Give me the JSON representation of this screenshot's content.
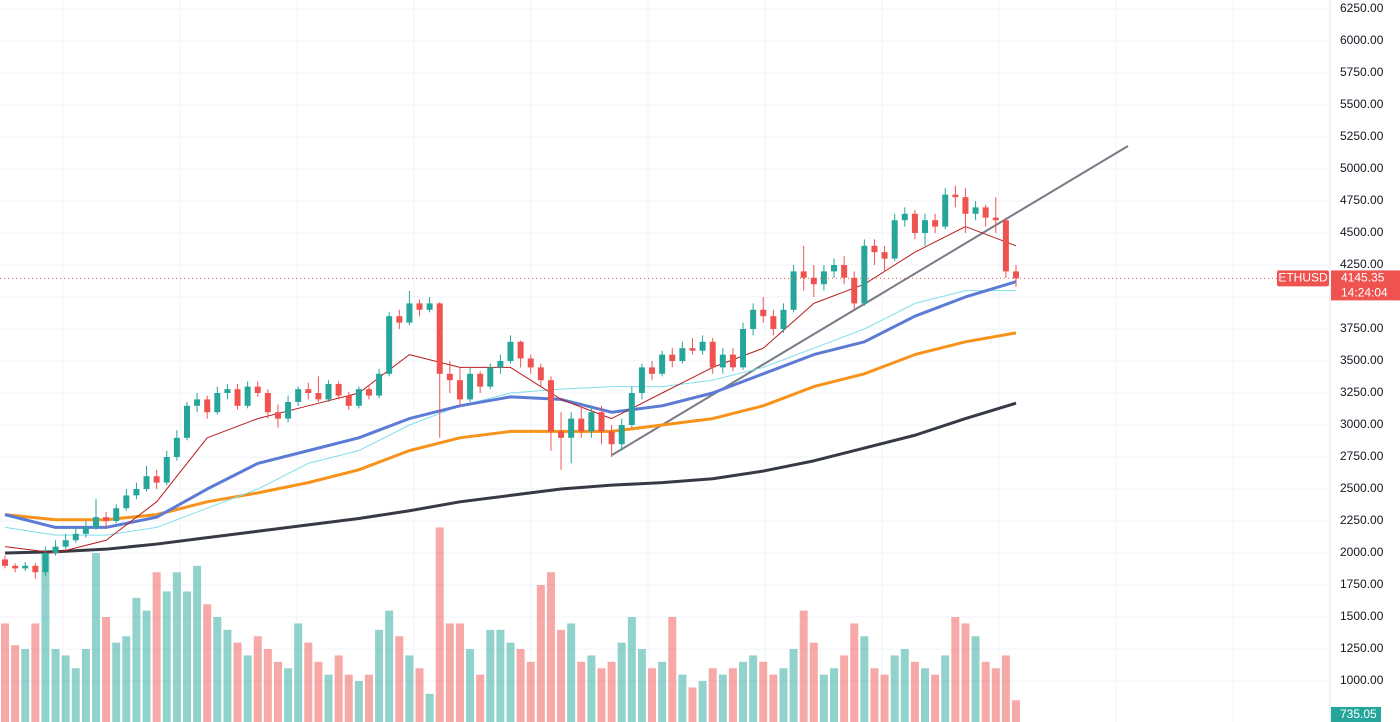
{
  "chart_data": {
    "type": "candlestick",
    "symbol": "ETHUSD",
    "last_price": 4145.35,
    "countdown": "14:24:04",
    "last_volume": 735.05,
    "ylim": [
      680,
      6320
    ],
    "yticks": [
      {
        "value": 1000,
        "label": "1000.00"
      },
      {
        "value": 1250,
        "label": "1250.00"
      },
      {
        "value": 1500,
        "label": "1500.00"
      },
      {
        "value": 1750,
        "label": "1750.00"
      },
      {
        "value": 2000,
        "label": "2000.00"
      },
      {
        "value": 2250,
        "label": "2250.00"
      },
      {
        "value": 2500,
        "label": "2500.00"
      },
      {
        "value": 2750,
        "label": "2750.00"
      },
      {
        "value": 3000,
        "label": "3000.00"
      },
      {
        "value": 3250,
        "label": "3250.00"
      },
      {
        "value": 3500,
        "label": "3500.00"
      },
      {
        "value": 3750,
        "label": "3750.00"
      },
      {
        "value": 4000,
        "label": "4000.00"
      },
      {
        "value": 4250,
        "label": "4250.00"
      },
      {
        "value": 4500,
        "label": "4500.00"
      },
      {
        "value": 4750,
        "label": "4750.00"
      },
      {
        "value": 5000,
        "label": "5000.00"
      },
      {
        "value": 5250,
        "label": "5250.00"
      },
      {
        "value": 5500,
        "label": "5500.00"
      },
      {
        "value": 5750,
        "label": "5750.00"
      },
      {
        "value": 6000,
        "label": "6000.00"
      },
      {
        "value": 6250,
        "label": "6250.00"
      }
    ],
    "grid": true,
    "up_color": "#26a69a",
    "down_color": "#ef5350",
    "candles": [
      [
        1950,
        1980,
        1880,
        1900
      ],
      [
        1900,
        1920,
        1850,
        1880
      ],
      [
        1880,
        1930,
        1860,
        1900
      ],
      [
        1900,
        1920,
        1800,
        1850
      ],
      [
        1850,
        2050,
        1820,
        2000
      ],
      [
        2000,
        2100,
        1980,
        2050
      ],
      [
        2050,
        2150,
        2030,
        2100
      ],
      [
        2100,
        2200,
        2080,
        2150
      ],
      [
        2150,
        2250,
        2120,
        2200
      ],
      [
        2200,
        2420,
        2180,
        2280
      ],
      [
        2280,
        2320,
        2200,
        2250
      ],
      [
        2250,
        2380,
        2230,
        2350
      ],
      [
        2350,
        2500,
        2330,
        2450
      ],
      [
        2450,
        2550,
        2420,
        2500
      ],
      [
        2500,
        2680,
        2480,
        2600
      ],
      [
        2600,
        2650,
        2500,
        2550
      ],
      [
        2550,
        2800,
        2530,
        2750
      ],
      [
        2750,
        2960,
        2720,
        2900
      ],
      [
        2900,
        3180,
        2880,
        3150
      ],
      [
        3150,
        3250,
        3100,
        3200
      ],
      [
        3200,
        3230,
        3050,
        3100
      ],
      [
        3100,
        3300,
        3080,
        3250
      ],
      [
        3250,
        3320,
        3200,
        3280
      ],
      [
        3280,
        3320,
        3120,
        3150
      ],
      [
        3150,
        3340,
        3130,
        3300
      ],
      [
        3300,
        3340,
        3220,
        3250
      ],
      [
        3250,
        3280,
        3050,
        3100
      ],
      [
        3100,
        3160,
        2980,
        3050
      ],
      [
        3050,
        3230,
        3020,
        3180
      ],
      [
        3180,
        3300,
        3150,
        3280
      ],
      [
        3280,
        3330,
        3200,
        3250
      ],
      [
        3250,
        3380,
        3180,
        3200
      ],
      [
        3200,
        3350,
        3180,
        3320
      ],
      [
        3320,
        3340,
        3200,
        3230
      ],
      [
        3230,
        3260,
        3120,
        3150
      ],
      [
        3150,
        3300,
        3130,
        3280
      ],
      [
        3280,
        3300,
        3200,
        3230
      ],
      [
        3230,
        3440,
        3210,
        3400
      ],
      [
        3400,
        3880,
        3380,
        3850
      ],
      [
        3850,
        3900,
        3750,
        3800
      ],
      [
        3800,
        4050,
        3780,
        3950
      ],
      [
        3950,
        3980,
        3850,
        3900
      ],
      [
        3900,
        4000,
        3880,
        3950
      ],
      [
        3950,
        3960,
        2900,
        3400
      ],
      [
        3400,
        3500,
        3250,
        3350
      ],
      [
        3350,
        3450,
        3150,
        3200
      ],
      [
        3200,
        3450,
        3180,
        3400
      ],
      [
        3400,
        3420,
        3250,
        3300
      ],
      [
        3300,
        3480,
        3280,
        3450
      ],
      [
        3450,
        3550,
        3400,
        3500
      ],
      [
        3500,
        3700,
        3480,
        3650
      ],
      [
        3650,
        3660,
        3450,
        3520
      ],
      [
        3520,
        3550,
        3400,
        3450
      ],
      [
        3450,
        3480,
        3300,
        3350
      ],
      [
        3350,
        3380,
        2800,
        2950
      ],
      [
        2950,
        3100,
        2650,
        2900
      ],
      [
        2900,
        3100,
        2700,
        3050
      ],
      [
        3050,
        3150,
        2900,
        2950
      ],
      [
        2950,
        3150,
        2900,
        3100
      ],
      [
        3100,
        3150,
        2850,
        2950
      ],
      [
        2950,
        3000,
        2750,
        2850
      ],
      [
        2850,
        3050,
        2800,
        3000
      ],
      [
        3000,
        3300,
        2980,
        3250
      ],
      [
        3250,
        3480,
        3200,
        3450
      ],
      [
        3450,
        3500,
        3350,
        3400
      ],
      [
        3400,
        3580,
        3380,
        3550
      ],
      [
        3550,
        3600,
        3450,
        3500
      ],
      [
        3500,
        3650,
        3480,
        3600
      ],
      [
        3600,
        3680,
        3550,
        3580
      ],
      [
        3580,
        3700,
        3550,
        3650
      ],
      [
        3650,
        3680,
        3400,
        3450
      ],
      [
        3450,
        3600,
        3400,
        3550
      ],
      [
        3550,
        3600,
        3420,
        3450
      ],
      [
        3450,
        3800,
        3430,
        3750
      ],
      [
        3750,
        3950,
        3700,
        3900
      ],
      [
        3900,
        4000,
        3800,
        3850
      ],
      [
        3850,
        3900,
        3700,
        3750
      ],
      [
        3750,
        3950,
        3720,
        3900
      ],
      [
        3900,
        4250,
        3880,
        4200
      ],
      [
        4200,
        4400,
        4050,
        4150
      ],
      [
        4150,
        4250,
        4000,
        4100
      ],
      [
        4100,
        4250,
        4050,
        4200
      ],
      [
        4200,
        4300,
        4150,
        4250
      ],
      [
        4250,
        4320,
        4100,
        4150
      ],
      [
        4150,
        4200,
        3900,
        3950
      ],
      [
        3950,
        4450,
        3930,
        4400
      ],
      [
        4400,
        4450,
        4250,
        4350
      ],
      [
        4350,
        4400,
        4200,
        4300
      ],
      [
        4300,
        4650,
        4280,
        4600
      ],
      [
        4600,
        4700,
        4550,
        4650
      ],
      [
        4650,
        4680,
        4450,
        4500
      ],
      [
        4500,
        4650,
        4400,
        4600
      ],
      [
        4600,
        4650,
        4500,
        4550
      ],
      [
        4550,
        4850,
        4530,
        4800
      ],
      [
        4800,
        4870,
        4700,
        4780
      ],
      [
        4780,
        4850,
        4500,
        4650
      ],
      [
        4650,
        4750,
        4600,
        4700
      ],
      [
        4700,
        4720,
        4550,
        4620
      ],
      [
        4620,
        4780,
        4500,
        4600
      ],
      [
        4600,
        4620,
        4150,
        4200
      ],
      [
        4200,
        4250,
        4080,
        4145
      ]
    ],
    "volumes": [
      1450,
      1280,
      1250,
      1450,
      2000,
      1250,
      1200,
      1100,
      1250,
      2000,
      1500,
      1300,
      1350,
      1650,
      1550,
      1850,
      1700,
      1850,
      1700,
      1900,
      1600,
      1500,
      1400,
      1300,
      1200,
      1350,
      1250,
      1150,
      1100,
      1450,
      1300,
      1150,
      1050,
      1200,
      1050,
      1000,
      1050,
      1400,
      1550,
      1350,
      1200,
      1100,
      900,
      2200,
      1450,
      1450,
      1250,
      1050,
      1400,
      1400,
      1300,
      1250,
      1150,
      1750,
      1850,
      1400,
      1450,
      1150,
      1200,
      1100,
      1150,
      1300,
      1500,
      1250,
      1100,
      1150,
      1500,
      1050,
      950,
      1000,
      1100,
      1050,
      1100,
      1150,
      1200,
      1150,
      1050,
      1100,
      1250,
      1550,
      1300,
      1050,
      1100,
      1200,
      1450,
      1350,
      1100,
      1050,
      1200,
      1250,
      1150,
      1100,
      1050,
      1200,
      1500,
      1450,
      1350,
      1150,
      1100,
      1200,
      850
    ],
    "ma_x": [
      0,
      5,
      10,
      15,
      20,
      25,
      30,
      35,
      40,
      45,
      50,
      55,
      60,
      65,
      70,
      75,
      80,
      85,
      90,
      95,
      100
    ],
    "series": [
      {
        "color": "#363a45",
        "width": 3,
        "values": [
          2000,
          2010,
          2030,
          2070,
          2120,
          2170,
          2220,
          2270,
          2330,
          2400,
          2450,
          2500,
          2530,
          2550,
          2580,
          2640,
          2720,
          2820,
          2920,
          3050,
          3170
        ]
      },
      {
        "color": "#f7931a",
        "width": 3,
        "values": [
          2300,
          2260,
          2260,
          2300,
          2400,
          2470,
          2550,
          2650,
          2800,
          2900,
          2950,
          2950,
          2950,
          3000,
          3050,
          3150,
          3300,
          3400,
          3550,
          3650,
          3720
        ]
      },
      {
        "color": "#80deea",
        "width": 1,
        "values": [
          2200,
          2140,
          2140,
          2200,
          2350,
          2500,
          2700,
          2800,
          3000,
          3150,
          3250,
          3280,
          3300,
          3300,
          3350,
          3450,
          3600,
          3750,
          3950,
          4050,
          4050
        ]
      },
      {
        "color": "#5b7bd5",
        "width": 3,
        "values": [
          2300,
          2200,
          2200,
          2280,
          2500,
          2700,
          2800,
          2900,
          3050,
          3150,
          3220,
          3200,
          3100,
          3150,
          3250,
          3400,
          3550,
          3650,
          3850,
          4000,
          4120
        ]
      },
      {
        "color": "#b71c1c",
        "width": 1,
        "values": [
          2050,
          2000,
          2100,
          2400,
          2900,
          3050,
          3150,
          3250,
          3550,
          3450,
          3450,
          3200,
          3050,
          3250,
          3450,
          3600,
          3950,
          4100,
          4350,
          4550,
          4400
        ]
      }
    ]
  }
}
